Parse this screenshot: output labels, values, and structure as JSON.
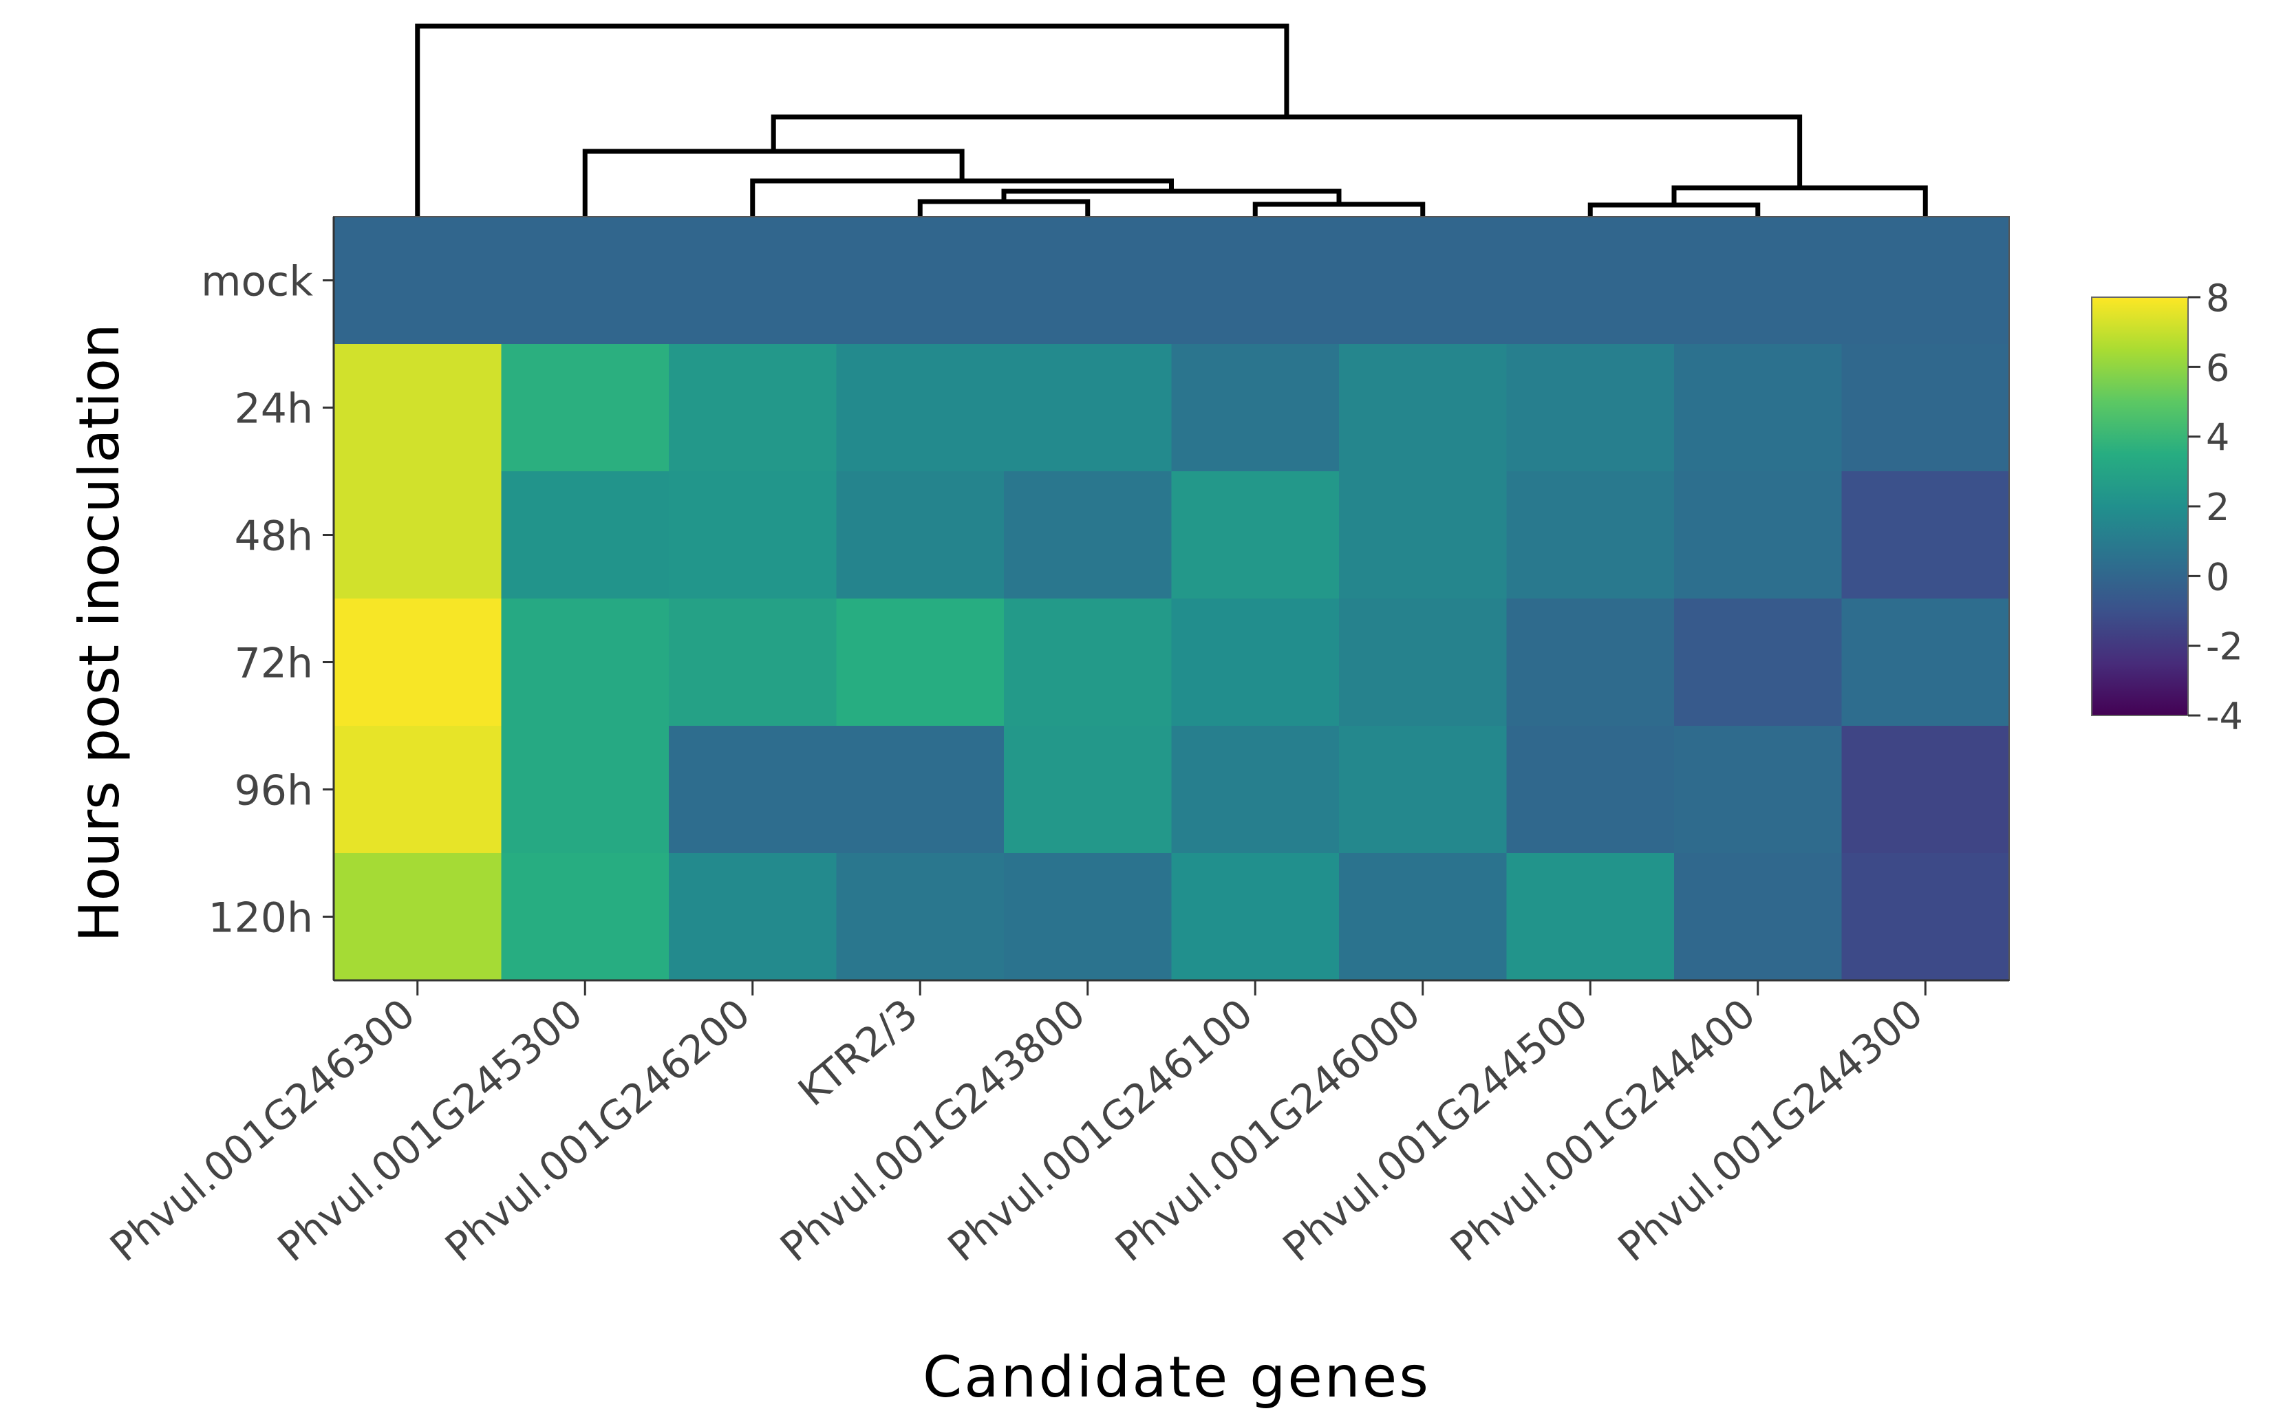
{
  "chart_data": {
    "type": "heatmap",
    "xlabel": "Candidate genes",
    "ylabel": "Hours post inoculation",
    "columns": [
      "Phvul.001G246300",
      "Phvul.001G245300",
      "Phvul.001G246200",
      "KTR2/3",
      "Phvul.001G243800",
      "Phvul.001G246100",
      "Phvul.001G246000",
      "Phvul.001G244500",
      "Phvul.001G244400",
      "Phvul.001G244300"
    ],
    "rows": [
      "mock",
      "24h",
      "48h",
      "72h",
      "96h",
      "120h"
    ],
    "values": [
      [
        0,
        0,
        0,
        0,
        0,
        0,
        0,
        0,
        0,
        0
      ],
      [
        7.2,
        3.6,
        2.4,
        1.7,
        1.7,
        0.7,
        1.5,
        1.2,
        0.5,
        0.1
      ],
      [
        7.2,
        2.2,
        2.3,
        1.4,
        0.8,
        2.4,
        1.5,
        0.9,
        0.4,
        -1.0
      ],
      [
        7.9,
        3.3,
        2.9,
        3.5,
        2.5,
        1.9,
        1.3,
        0.2,
        -0.6,
        0.3
      ],
      [
        7.6,
        3.3,
        0.3,
        0.3,
        2.4,
        1.2,
        1.6,
        0.1,
        0.2,
        -1.5
      ],
      [
        6.4,
        3.5,
        1.7,
        0.8,
        0.6,
        2.0,
        0.6,
        2.2,
        0.1,
        -1.3
      ]
    ],
    "colorbar": {
      "min": -4,
      "max": 8,
      "ticks": [
        8,
        6,
        4,
        2,
        0,
        -2,
        -4
      ]
    },
    "colormap": "viridis",
    "dendrogram": "top"
  }
}
